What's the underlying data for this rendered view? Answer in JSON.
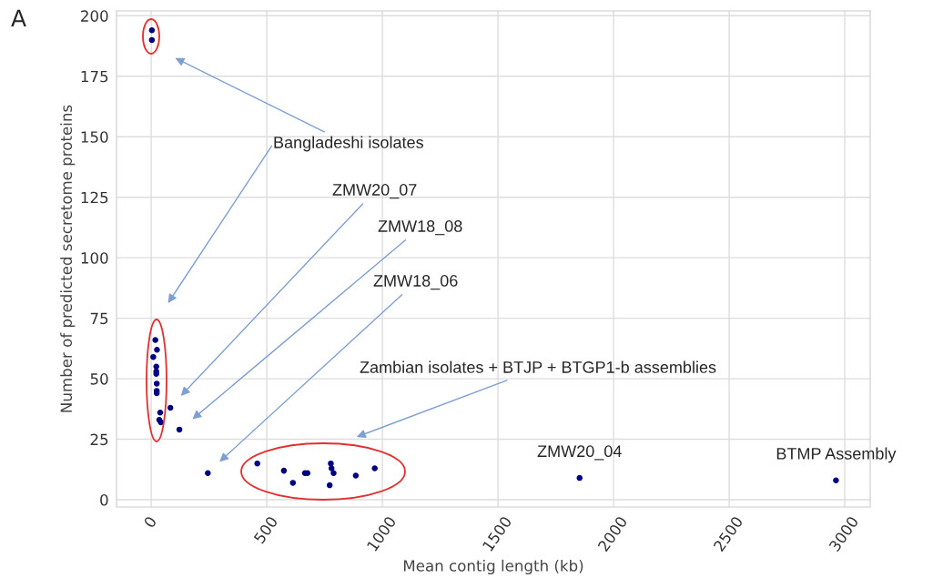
{
  "chart_data": {
    "type": "scatter",
    "xlabel": "Mean contig length (kb)",
    "ylabel": "Number of predicted secretome proteins",
    "x": [
      3,
      3,
      18,
      25,
      9,
      22,
      22,
      22,
      24,
      24,
      24,
      39,
      35,
      42,
      83,
      122,
      245,
      459,
      574,
      613,
      665,
      676,
      777,
      780,
      789,
      772,
      885,
      967,
      1853,
      2962
    ],
    "values": [
      194,
      190,
      66,
      62,
      59,
      55,
      53,
      52,
      48,
      45,
      44,
      36,
      33,
      32,
      38,
      29,
      11,
      15,
      12,
      7,
      11,
      11,
      15,
      13,
      11,
      6,
      10,
      13,
      9,
      8
    ],
    "color": "#000080",
    "marker": "circle",
    "xlim": [
      -150,
      3110
    ],
    "ylim": [
      -3,
      202
    ],
    "xticks": [
      0,
      500,
      1000,
      1500,
      2000,
      2500,
      3000
    ],
    "yticks": [
      0,
      25,
      50,
      75,
      100,
      125,
      150,
      175,
      200
    ],
    "grid": true,
    "annotations": [
      "A",
      "Bangladeshi isolates",
      "ZMW20_07",
      "ZMW18_08",
      "ZMW18_06",
      "Zambian isolates + BTJP + BTGP1-b assemblies",
      {
        "text": "ZMW20_04",
        "x": 1853,
        "y": 9
      },
      {
        "text": "BTMP Assembly",
        "x": 2962,
        "y": 8
      }
    ]
  }
}
